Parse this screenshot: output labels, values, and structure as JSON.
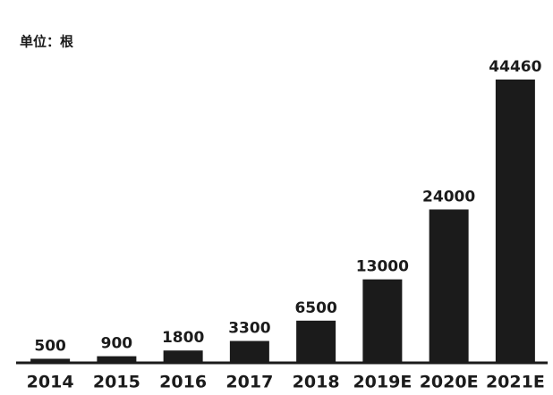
{
  "chart_data": {
    "type": "bar",
    "title": "单位：根",
    "categories": [
      "2014",
      "2015",
      "2016",
      "2017",
      "2018",
      "2019E",
      "2020E",
      "2021E"
    ],
    "values": [
      500,
      900,
      1800,
      3300,
      6500,
      13000,
      24000,
      44460
    ],
    "color": "#1b1b1b"
  }
}
